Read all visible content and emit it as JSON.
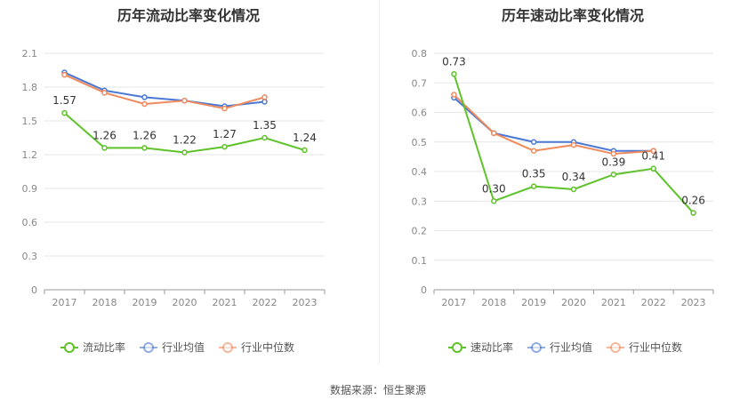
{
  "chart_data": [
    {
      "type": "line",
      "title": "历年流动比率变化情况",
      "categories": [
        "2017",
        "2018",
        "2019",
        "2020",
        "2021",
        "2022",
        "2023"
      ],
      "ylim": [
        0,
        2.1
      ],
      "yticks": [
        "0",
        "0.3",
        "0.6",
        "0.9",
        "1.2",
        "1.5",
        "1.8",
        "2.1"
      ],
      "grid": true,
      "legend_position": "bottom",
      "series": [
        {
          "name": "流动比率",
          "color": "#5ec22a",
          "values": [
            1.57,
            1.26,
            1.26,
            1.22,
            1.27,
            1.35,
            1.24
          ],
          "labels": [
            "1.57",
            "1.26",
            "1.26",
            "1.22",
            "1.27",
            "1.35",
            "1.24"
          ]
        },
        {
          "name": "行业均值",
          "color": "#4a78d4",
          "values": [
            1.93,
            1.77,
            1.71,
            1.68,
            1.63,
            1.67,
            null
          ]
        },
        {
          "name": "行业中位数",
          "color": "#f08a5d",
          "values": [
            1.91,
            1.75,
            1.65,
            1.68,
            1.61,
            1.71,
            null
          ]
        }
      ]
    },
    {
      "type": "line",
      "title": "历年速动比率变化情况",
      "categories": [
        "2017",
        "2018",
        "2019",
        "2020",
        "2021",
        "2022",
        "2023"
      ],
      "ylim": [
        0,
        0.8
      ],
      "yticks": [
        "0",
        "0.1",
        "0.2",
        "0.3",
        "0.4",
        "0.5",
        "0.6",
        "0.7",
        "0.8"
      ],
      "grid": true,
      "legend_position": "bottom",
      "series": [
        {
          "name": "速动比率",
          "color": "#5ec22a",
          "values": [
            0.73,
            0.3,
            0.35,
            0.34,
            0.39,
            0.41,
            0.26
          ],
          "labels": [
            "0.73",
            "0.30",
            "0.35",
            "0.34",
            "0.39",
            "0.41",
            "0.26"
          ]
        },
        {
          "name": "行业均值",
          "color": "#4a78d4",
          "values": [
            0.65,
            0.53,
            0.5,
            0.5,
            0.47,
            0.47,
            null
          ]
        },
        {
          "name": "行业中位数",
          "color": "#f08a5d",
          "values": [
            0.66,
            0.53,
            0.47,
            0.49,
            0.46,
            0.47,
            null
          ]
        }
      ]
    }
  ],
  "source": "数据来源：恒生聚源"
}
